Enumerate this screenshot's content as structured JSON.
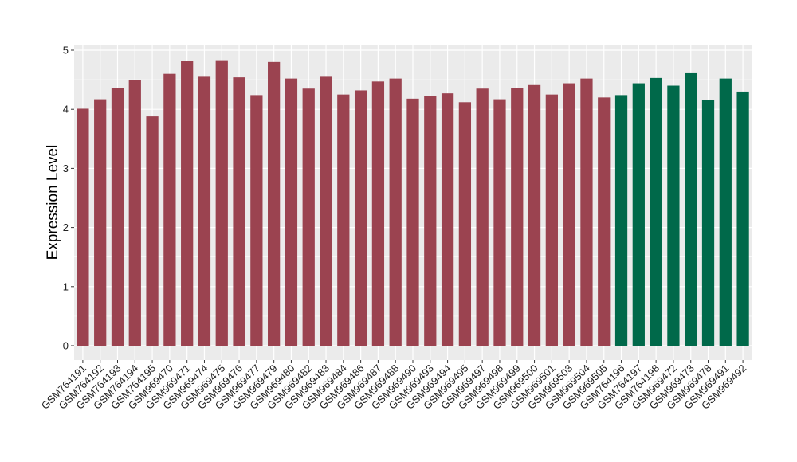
{
  "chart_data": {
    "type": "bar",
    "title": "",
    "xlabel": "",
    "ylabel": "Expression Level",
    "ylim": [
      -0.2,
      5.05
    ],
    "yticks": [
      0,
      1,
      2,
      3,
      4,
      5
    ],
    "grid": true,
    "legend": "none",
    "colors": {
      "group_a": "#9b4350",
      "group_b": "#00694a",
      "panel": "#ebebeb",
      "grid": "#ffffff"
    },
    "categories": [
      "GSM764191",
      "GSM764192",
      "GSM764193",
      "GSM764194",
      "GSM764195",
      "GSM969470",
      "GSM969471",
      "GSM969474",
      "GSM969475",
      "GSM969476",
      "GSM969477",
      "GSM969479",
      "GSM969480",
      "GSM969482",
      "GSM969483",
      "GSM969484",
      "GSM969486",
      "GSM969487",
      "GSM969488",
      "GSM969490",
      "GSM969493",
      "GSM969494",
      "GSM969495",
      "GSM969497",
      "GSM969498",
      "GSM969499",
      "GSM969500",
      "GSM969501",
      "GSM969503",
      "GSM969504",
      "GSM969505",
      "GSM764196",
      "GSM764197",
      "GSM764198",
      "GSM969472",
      "GSM969473",
      "GSM969478",
      "GSM969491",
      "GSM969492"
    ],
    "values": [
      4.01,
      4.17,
      4.36,
      4.49,
      3.88,
      4.6,
      4.82,
      4.55,
      4.83,
      4.54,
      4.24,
      4.8,
      4.52,
      4.35,
      4.55,
      4.25,
      4.32,
      4.47,
      4.52,
      4.18,
      4.22,
      4.27,
      4.12,
      4.35,
      4.17,
      4.36,
      4.41,
      4.25,
      4.44,
      4.52,
      4.2,
      4.24,
      4.44,
      4.53,
      4.4,
      4.61,
      4.16,
      4.52,
      4.3
    ],
    "groups": [
      "a",
      "a",
      "a",
      "a",
      "a",
      "a",
      "a",
      "a",
      "a",
      "a",
      "a",
      "a",
      "a",
      "a",
      "a",
      "a",
      "a",
      "a",
      "a",
      "a",
      "a",
      "a",
      "a",
      "a",
      "a",
      "a",
      "a",
      "a",
      "a",
      "a",
      "a",
      "b",
      "b",
      "b",
      "b",
      "b",
      "b",
      "b",
      "b"
    ]
  }
}
